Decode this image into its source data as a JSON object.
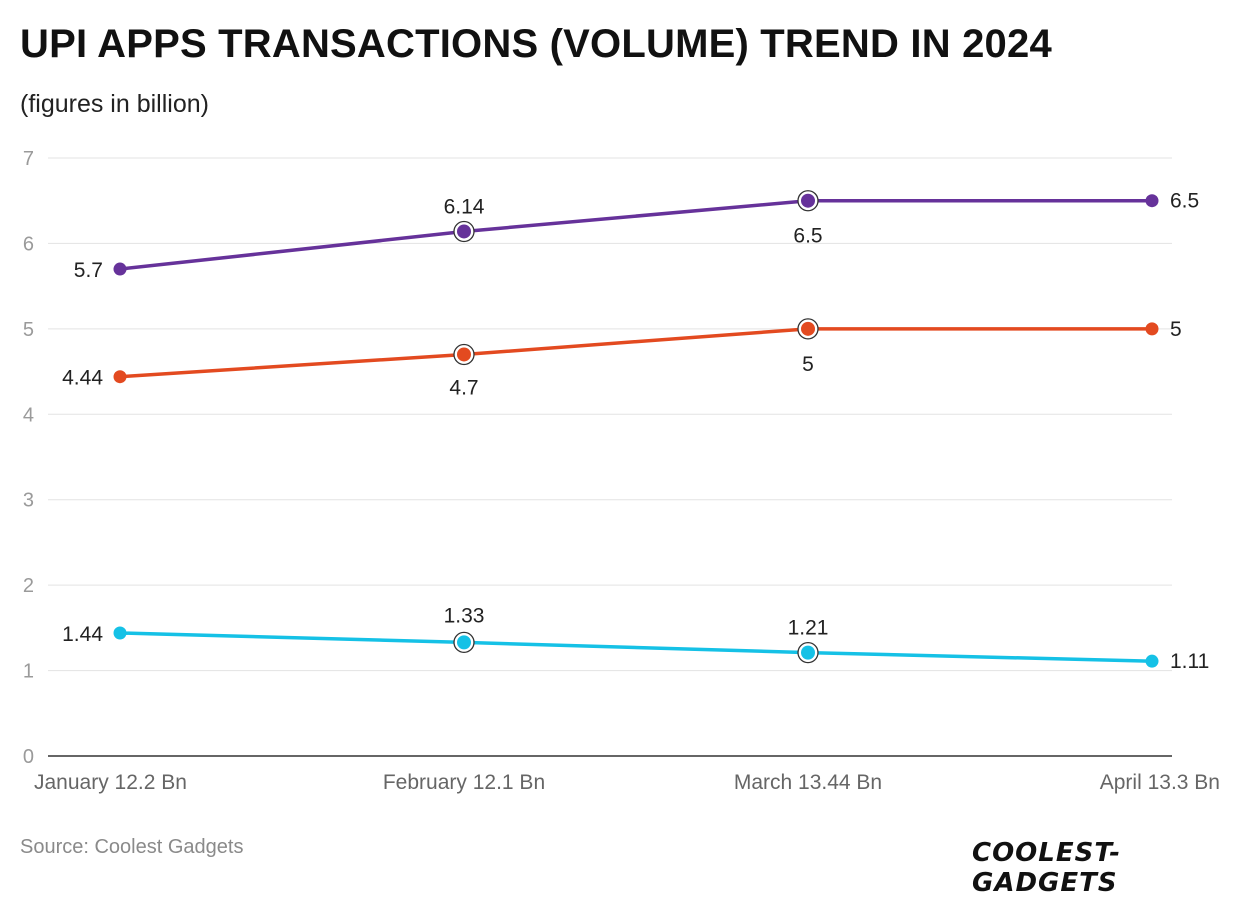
{
  "title": "UPI APPS TRANSACTIONS (VOLUME) TREND IN 2024",
  "subtitle": "(figures in billion)",
  "source": "Source: Coolest Gadgets",
  "logo_text": "COOLEST-GADGETS",
  "chart_data": {
    "type": "line",
    "categories": [
      "January 12.2 Bn",
      "February 12.1 Bn",
      "March 13.44 Bn",
      "April 13.3 Bn"
    ],
    "ylim": [
      0,
      7
    ],
    "yticks": [
      0,
      1,
      2,
      3,
      4,
      5,
      6,
      7
    ],
    "grid": true,
    "series": [
      {
        "color": "#66329a",
        "values": [
          5.7,
          6.14,
          6.5,
          6.5
        ],
        "labels": [
          "5.7",
          "6.14",
          "6.5",
          "6.5"
        ]
      },
      {
        "color": "#e34a20",
        "values": [
          4.44,
          4.7,
          5,
          5
        ],
        "labels": [
          "4.44",
          "4.7",
          "5",
          "5"
        ]
      },
      {
        "color": "#15c1e6",
        "values": [
          1.44,
          1.33,
          1.21,
          1.11
        ],
        "labels": [
          "1.44",
          "1.33",
          "1.21",
          "1.11"
        ]
      }
    ]
  }
}
